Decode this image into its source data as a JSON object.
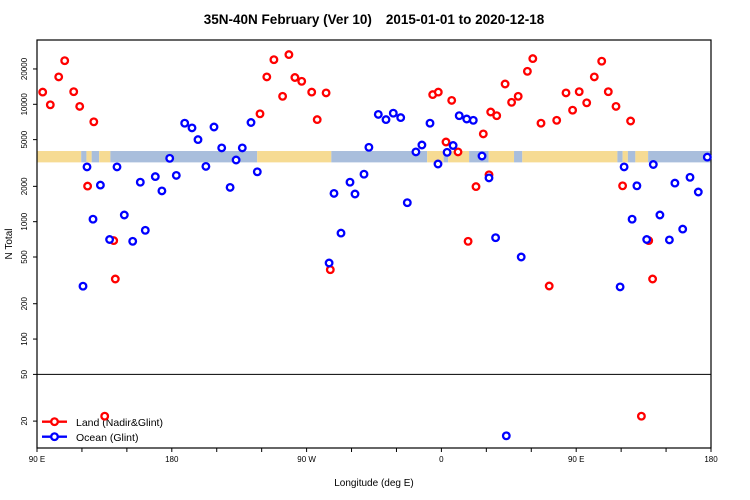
{
  "chart_data": {
    "type": "scatter",
    "title": "35N-40N February (Ver 10)",
    "date_range": "2015-01-01 to 2020-12-18",
    "xlabel": "Longitude (deg E)",
    "ylabel": "N Total",
    "x_domain": [
      90,
      540
    ],
    "y_domain": [
      11.8,
      35300
    ],
    "y_scale": "log",
    "grid": false,
    "x_ticks": [
      {
        "pos": 90,
        "label": "90 E"
      },
      {
        "pos": 180,
        "label": "180"
      },
      {
        "pos": 270,
        "label": "90 W"
      },
      {
        "pos": 360,
        "label": "0"
      },
      {
        "pos": 450,
        "label": "90 E"
      },
      {
        "pos": 540,
        "label": "180"
      }
    ],
    "x_minor_tick_step": 30,
    "y_ticks": [
      20,
      50,
      100,
      200,
      500,
      1000,
      2000,
      5000,
      10000,
      20000
    ],
    "reference_line_y": 50,
    "land_ocean_band": {
      "value_high": 4000,
      "value_low": 3200,
      "land_color": "#F6DB93",
      "ocean_color": "#A9BEDC",
      "segments": [
        {
          "from": 90,
          "to": 119.5,
          "type": "land"
        },
        {
          "from": 119.5,
          "to": 123,
          "type": "ocean"
        },
        {
          "from": 123,
          "to": 126.5,
          "type": "land"
        },
        {
          "from": 126.5,
          "to": 131.5,
          "type": "ocean"
        },
        {
          "from": 131.5,
          "to": 139,
          "type": "land"
        },
        {
          "from": 139,
          "to": 237,
          "type": "ocean"
        },
        {
          "from": 237,
          "to": 286.5,
          "type": "land"
        },
        {
          "from": 286.5,
          "to": 350.5,
          "type": "ocean"
        },
        {
          "from": 350.5,
          "to": 361.5,
          "type": "land"
        },
        {
          "from": 361.5,
          "to": 364.5,
          "type": "ocean"
        },
        {
          "from": 364.5,
          "to": 378.5,
          "type": "land"
        },
        {
          "from": 378.5,
          "to": 391.5,
          "type": "ocean"
        },
        {
          "from": 391.5,
          "to": 408.5,
          "type": "land"
        },
        {
          "from": 408.5,
          "to": 414,
          "type": "ocean"
        },
        {
          "from": 414,
          "to": 477.5,
          "type": "land"
        },
        {
          "from": 477.5,
          "to": 481,
          "type": "ocean"
        },
        {
          "from": 481,
          "to": 484.5,
          "type": "land"
        },
        {
          "from": 484.5,
          "to": 489.5,
          "type": "ocean"
        },
        {
          "from": 489.5,
          "to": 498,
          "type": "land"
        },
        {
          "from": 498,
          "to": 540,
          "type": "ocean"
        }
      ]
    },
    "legend_position": "bottom-left",
    "series": [
      {
        "name": "Land (Nadir&Glint)",
        "color": "#FF0000",
        "marker": "open-circle",
        "points": [
          [
            93.8,
            12700
          ],
          [
            98.9,
            9900
          ],
          [
            104.5,
            17100
          ],
          [
            108.5,
            23500
          ],
          [
            114.5,
            12800
          ],
          [
            118.5,
            9600
          ],
          [
            123.8,
            2010
          ],
          [
            127.9,
            7100
          ],
          [
            135.2,
            22
          ],
          [
            141.2,
            690
          ],
          [
            142.3,
            325
          ],
          [
            238.9,
            8300
          ],
          [
            243.4,
            17100
          ],
          [
            248.2,
            24000
          ],
          [
            254.0,
            11700
          ],
          [
            258.2,
            26500
          ],
          [
            262.2,
            16900
          ],
          [
            266.7,
            15700
          ],
          [
            273.4,
            12700
          ],
          [
            277.1,
            7400
          ],
          [
            283.0,
            12500
          ],
          [
            285.8,
            390
          ],
          [
            354.2,
            12100
          ],
          [
            357.9,
            12700
          ],
          [
            363.1,
            4770
          ],
          [
            366.9,
            10800
          ],
          [
            371.1,
            3930
          ],
          [
            377.8,
            680
          ],
          [
            383.1,
            1990
          ],
          [
            388.0,
            5600
          ],
          [
            391.8,
            2510
          ],
          [
            392.9,
            8600
          ],
          [
            396.9,
            8000
          ],
          [
            402.5,
            14900
          ],
          [
            406.9,
            10400
          ],
          [
            411.3,
            11700
          ],
          [
            417.4,
            19100
          ],
          [
            421.0,
            24500
          ],
          [
            426.5,
            6900
          ],
          [
            432.0,
            283
          ],
          [
            437.0,
            7300
          ],
          [
            443.2,
            12500
          ],
          [
            447.6,
            8900
          ],
          [
            452.0,
            12800
          ],
          [
            457.0,
            10300
          ],
          [
            462.1,
            17100
          ],
          [
            467.0,
            23300
          ],
          [
            471.4,
            12800
          ],
          [
            476.6,
            9600
          ],
          [
            481.0,
            2020
          ],
          [
            486.3,
            7200
          ],
          [
            493.5,
            22
          ],
          [
            498.4,
            690
          ],
          [
            501.0,
            325
          ]
        ]
      },
      {
        "name": "Ocean (Glint)",
        "color": "#0000FF",
        "marker": "open-circle",
        "points": [
          [
            120.7,
            282
          ],
          [
            123.4,
            2930
          ],
          [
            127.4,
            1050
          ],
          [
            132.3,
            2050
          ],
          [
            138.5,
            705
          ],
          [
            143.4,
            2930
          ],
          [
            148.3,
            1140
          ],
          [
            153.9,
            680
          ],
          [
            159.0,
            2170
          ],
          [
            162.3,
            845
          ],
          [
            169.0,
            2420
          ],
          [
            173.4,
            1830
          ],
          [
            178.6,
            3470
          ],
          [
            183.0,
            2480
          ],
          [
            188.6,
            6900
          ],
          [
            193.5,
            6300
          ],
          [
            197.5,
            5000
          ],
          [
            202.8,
            2960
          ],
          [
            208.2,
            6400
          ],
          [
            213.3,
            4250
          ],
          [
            218.9,
            1960
          ],
          [
            222.9,
            3350
          ],
          [
            227.1,
            4250
          ],
          [
            232.9,
            7000
          ],
          [
            237.1,
            2660
          ],
          [
            285.0,
            445
          ],
          [
            288.3,
            1740
          ],
          [
            293.0,
            800
          ],
          [
            299.0,
            2170
          ],
          [
            302.3,
            1720
          ],
          [
            308.3,
            2540
          ],
          [
            311.6,
            4300
          ],
          [
            317.9,
            8200
          ],
          [
            323.0,
            7400
          ],
          [
            327.9,
            8400
          ],
          [
            332.8,
            7700
          ],
          [
            337.2,
            1450
          ],
          [
            343.0,
            3930
          ],
          [
            347.0,
            4500
          ],
          [
            352.4,
            6900
          ],
          [
            357.7,
            3100
          ],
          [
            363.8,
            3900
          ],
          [
            367.8,
            4460
          ],
          [
            371.9,
            8000
          ],
          [
            376.9,
            7500
          ],
          [
            381.3,
            7300
          ],
          [
            387.1,
            3630
          ],
          [
            391.8,
            2360
          ],
          [
            396.2,
            730
          ],
          [
            403.3,
            15
          ],
          [
            413.3,
            500
          ],
          [
            479.3,
            278
          ],
          [
            482.0,
            2930
          ],
          [
            487.3,
            1050
          ],
          [
            490.5,
            2020
          ],
          [
            497.1,
            705
          ],
          [
            501.5,
            3070
          ],
          [
            505.9,
            1140
          ],
          [
            512.2,
            700
          ],
          [
            515.9,
            2130
          ],
          [
            521.1,
            865
          ],
          [
            526.0,
            2390
          ],
          [
            531.5,
            1790
          ],
          [
            537.5,
            3550
          ]
        ]
      }
    ]
  }
}
